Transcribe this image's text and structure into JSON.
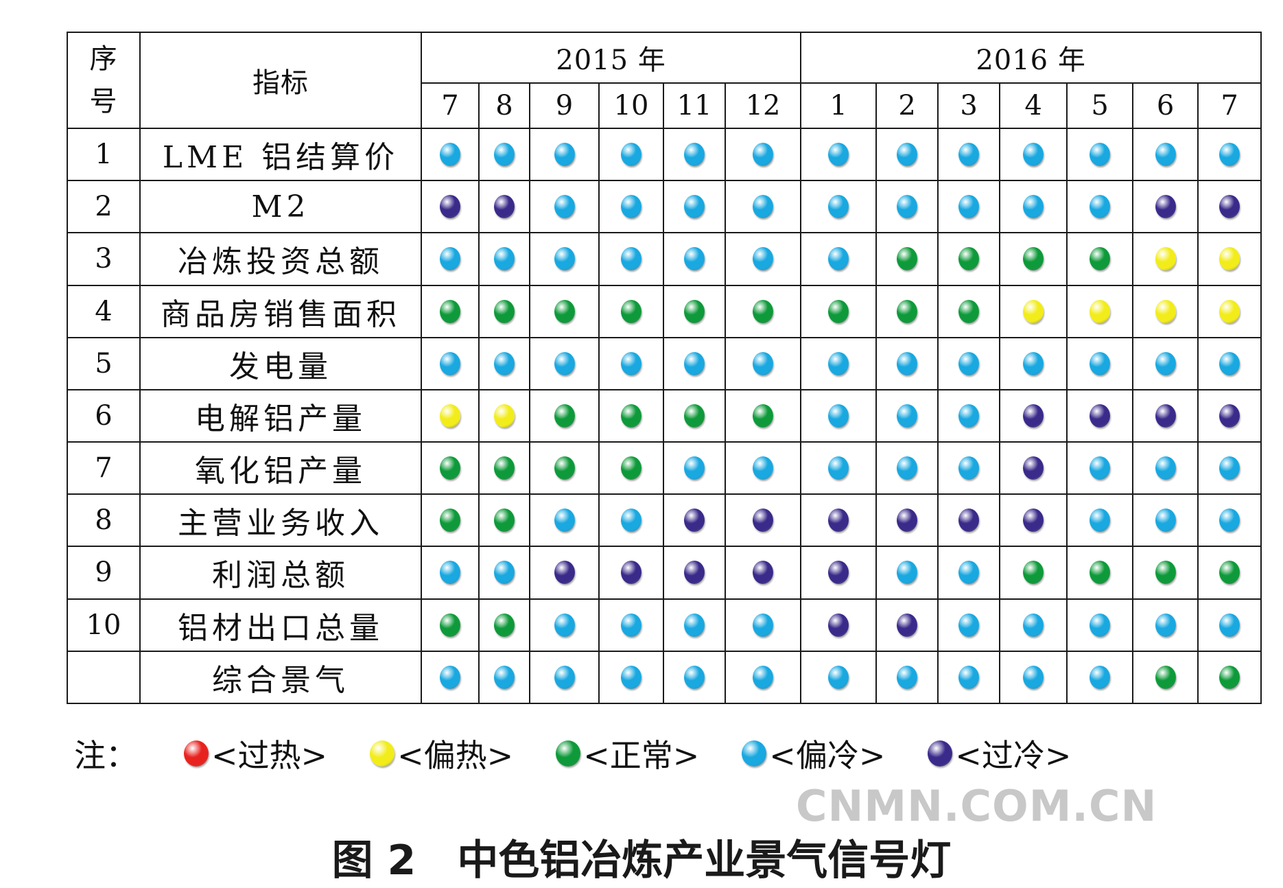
{
  "chart_data": {
    "type": "table",
    "header": {
      "seq_label_line1": "序",
      "seq_label_line2": "号",
      "indicator_label": "指标",
      "years": [
        {
          "label": "2015 年",
          "months": [
            "7",
            "8",
            "9",
            "10",
            "11",
            "12"
          ]
        },
        {
          "label": "2016 年",
          "months": [
            "1",
            "2",
            "3",
            "4",
            "5",
            "6",
            "7"
          ]
        }
      ]
    },
    "rows": [
      {
        "seq": "1",
        "name": "LME 铝结算价",
        "signals": [
          "偏冷",
          "偏冷",
          "偏冷",
          "偏冷",
          "偏冷",
          "偏冷",
          "偏冷",
          "偏冷",
          "偏冷",
          "偏冷",
          "偏冷",
          "偏冷",
          "偏冷"
        ]
      },
      {
        "seq": "2",
        "name": "M2",
        "signals": [
          "过冷",
          "过冷",
          "偏冷",
          "偏冷",
          "偏冷",
          "偏冷",
          "偏冷",
          "偏冷",
          "偏冷",
          "偏冷",
          "偏冷",
          "过冷",
          "过冷"
        ]
      },
      {
        "seq": "3",
        "name": "冶炼投资总额",
        "signals": [
          "偏冷",
          "偏冷",
          "偏冷",
          "偏冷",
          "偏冷",
          "偏冷",
          "偏冷",
          "正常",
          "正常",
          "正常",
          "正常",
          "偏热",
          "偏热"
        ]
      },
      {
        "seq": "4",
        "name": "商品房销售面积",
        "signals": [
          "正常",
          "正常",
          "正常",
          "正常",
          "正常",
          "正常",
          "正常",
          "正常",
          "正常",
          "偏热",
          "偏热",
          "偏热",
          "偏热"
        ]
      },
      {
        "seq": "5",
        "name": "发电量",
        "signals": [
          "偏冷",
          "偏冷",
          "偏冷",
          "偏冷",
          "偏冷",
          "偏冷",
          "偏冷",
          "偏冷",
          "偏冷",
          "偏冷",
          "偏冷",
          "偏冷",
          "偏冷"
        ]
      },
      {
        "seq": "6",
        "name": "电解铝产量",
        "signals": [
          "偏热",
          "偏热",
          "正常",
          "正常",
          "正常",
          "正常",
          "偏冷",
          "偏冷",
          "偏冷",
          "过冷",
          "过冷",
          "过冷",
          "过冷"
        ]
      },
      {
        "seq": "7",
        "name": "氧化铝产量",
        "signals": [
          "正常",
          "正常",
          "正常",
          "正常",
          "偏冷",
          "偏冷",
          "偏冷",
          "偏冷",
          "偏冷",
          "过冷",
          "偏冷",
          "偏冷",
          "偏冷"
        ]
      },
      {
        "seq": "8",
        "name": "主营业务收入",
        "signals": [
          "正常",
          "正常",
          "偏冷",
          "偏冷",
          "过冷",
          "过冷",
          "过冷",
          "过冷",
          "过冷",
          "过冷",
          "偏冷",
          "偏冷",
          "偏冷"
        ]
      },
      {
        "seq": "9",
        "name": "利润总额",
        "signals": [
          "偏冷",
          "偏冷",
          "过冷",
          "过冷",
          "过冷",
          "过冷",
          "过冷",
          "偏冷",
          "偏冷",
          "正常",
          "正常",
          "正常",
          "正常"
        ]
      },
      {
        "seq": "10",
        "name": "铝材出口总量",
        "signals": [
          "正常",
          "正常",
          "偏冷",
          "偏冷",
          "偏冷",
          "偏冷",
          "过冷",
          "过冷",
          "偏冷",
          "偏冷",
          "偏冷",
          "偏冷",
          "偏冷"
        ]
      },
      {
        "seq": "",
        "name": "综合景气",
        "signals": [
          "偏冷",
          "偏冷",
          "偏冷",
          "偏冷",
          "偏冷",
          "偏冷",
          "偏冷",
          "偏冷",
          "偏冷",
          "偏冷",
          "偏冷",
          "正常",
          "正常"
        ]
      }
    ],
    "legend": {
      "prefix": "注：",
      "items": [
        {
          "label": "<过热>",
          "color": "#e8231f"
        },
        {
          "label": "<偏热>",
          "color": "#f2ec1a"
        },
        {
          "label": "<正常>",
          "color": "#0e9a3a"
        },
        {
          "label": "<偏冷>",
          "color": "#19a8e0"
        },
        {
          "label": "<过冷>",
          "color": "#3a2a8a"
        }
      ]
    }
  },
  "watermark": "CNMN.COM.CN",
  "caption": {
    "number": "图 2",
    "title": "中色铝冶炼产业景气信号灯"
  }
}
